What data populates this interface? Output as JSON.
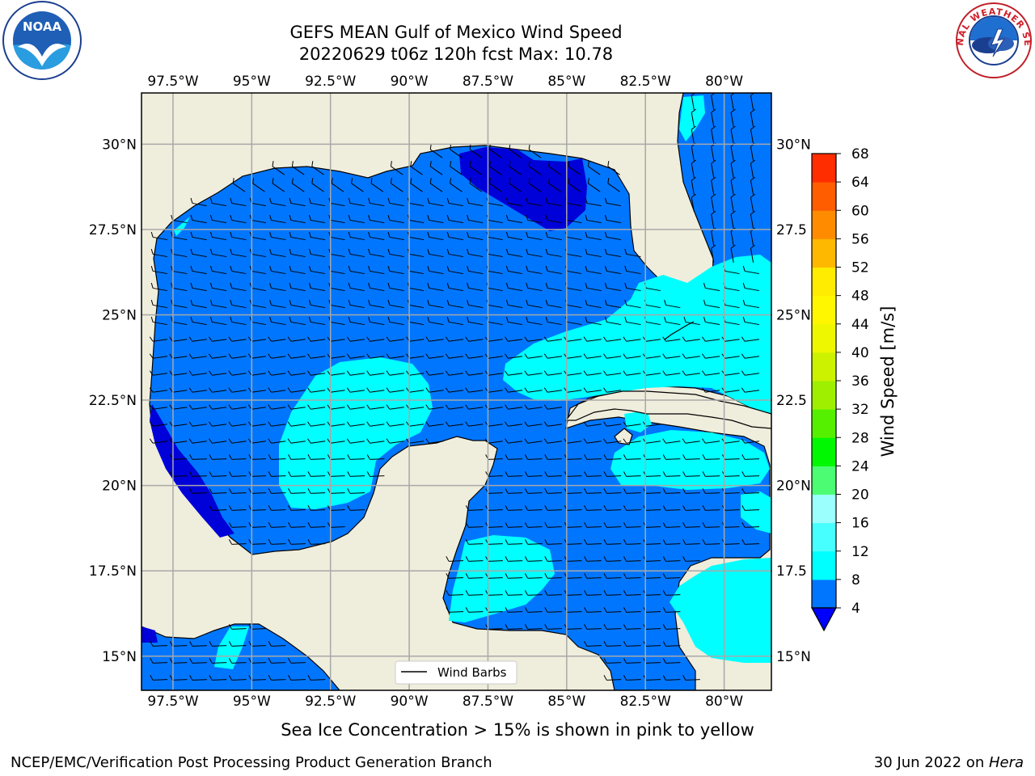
{
  "title": {
    "line1": "GEFS MEAN Gulf of Mexico Wind Speed",
    "line2": "20220629 t06z 120h fcst   Max: 10.78"
  },
  "map": {
    "lon_range": [
      -98.5,
      -78.5
    ],
    "lat_range": [
      14,
      31.5
    ],
    "lon_ticks": [
      "97.5°W",
      "95°W",
      "92.5°W",
      "90°W",
      "87.5°W",
      "85°W",
      "82.5°W",
      "80°W"
    ],
    "lat_ticks_left": [
      "30°N",
      "27.5°N",
      "25°N",
      "22.5°N",
      "20°N",
      "17.5°N",
      "15°N"
    ],
    "lat_ticks_right": [
      "30°N",
      "27.5",
      "25°N",
      "22.5",
      "20°N",
      "17.5",
      "15°N"
    ],
    "land_color": "#efeddc",
    "grid": true,
    "legend_label": "Wind Barbs"
  },
  "colorbar": {
    "label": "Wind Speed [m/s]",
    "ticks": [
      "4",
      "8",
      "12",
      "16",
      "20",
      "24",
      "28",
      "32",
      "36",
      "40",
      "44",
      "48",
      "52",
      "56",
      "60",
      "64",
      "68"
    ],
    "colors": [
      "#0076ff",
      "#00ffff",
      "#48ffff",
      "#9bfffd",
      "#4cfd74",
      "#00f800",
      "#55f000",
      "#9ef000",
      "#ccf200",
      "#eef600",
      "#fff700",
      "#ffec00",
      "#ffb800",
      "#ff8c00",
      "#ff5d00",
      "#ff2d00"
    ],
    "under_color": "#0000ff"
  },
  "logos": {
    "left": "NOAA",
    "right": "NATIONAL WEATHER SERVICE"
  },
  "notes": {
    "ice": "Sea Ice Concentration > 15% is shown in pink to yellow",
    "footer_left": "NCEP/EMC/Verification Post Processing Product Generation Branch",
    "footer_right_prefix": "30 Jun 2022 on ",
    "footer_right_machine": "Hera"
  }
}
